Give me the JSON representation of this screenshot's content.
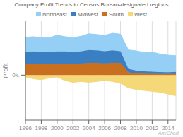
{
  "chart_data": {
    "type": "area",
    "title": "Company Profit Trends in Census Bureau-designated regions",
    "ylabel": "Profit",
    "x": [
      1996,
      1997,
      1998,
      1999,
      2000,
      2001,
      2002,
      2003,
      2004,
      2005,
      2006,
      2007,
      2008,
      2009,
      2010,
      2011,
      2012,
      2013,
      2014,
      2015
    ],
    "series": [
      {
        "name": "Northeast",
        "color": "#96cff5",
        "values": [
          800,
          820,
          780,
          780,
          900,
          820,
          780,
          840,
          900,
          880,
          880,
          950,
          950,
          1050,
          1100,
          1050,
          1100,
          1000,
          950,
          900
        ]
      },
      {
        "name": "Midwest",
        "color": "#3a7fc1",
        "values": [
          700,
          700,
          680,
          680,
          680,
          680,
          680,
          680,
          720,
          700,
          680,
          700,
          650,
          200,
          150,
          130,
          120,
          110,
          100,
          110
        ]
      },
      {
        "name": "South",
        "color": "#c97020",
        "values": [
          600,
          620,
          620,
          620,
          640,
          640,
          620,
          640,
          680,
          680,
          650,
          680,
          680,
          150,
          100,
          80,
          70,
          60,
          60,
          70
        ]
      },
      {
        "name": "West",
        "color": "#f5d878",
        "values": [
          -100,
          -200,
          -250,
          -150,
          -100,
          -300,
          -400,
          -350,
          -400,
          -350,
          -300,
          -350,
          -450,
          -700,
          -800,
          -850,
          -900,
          -950,
          -1050,
          -1150
        ]
      }
    ],
    "xlim": [
      1996,
      2015
    ],
    "xticks": [
      1996,
      1998,
      2000,
      2002,
      2004,
      2006,
      2008,
      2010,
      2012,
      2014
    ],
    "ylim": [
      -2500,
      3000
    ],
    "yticks": [
      {
        "value": 0,
        "label": "0k."
      }
    ],
    "stacked": true,
    "grid": "x",
    "legend": "top",
    "annotations": [
      "AnyChart"
    ]
  }
}
